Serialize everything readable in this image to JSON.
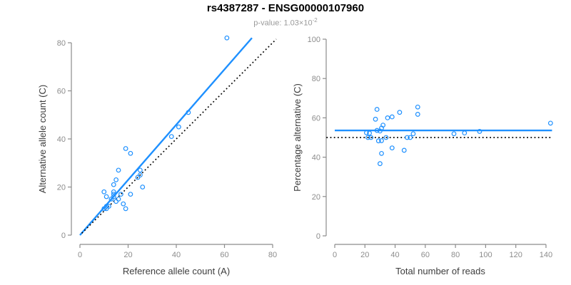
{
  "header": {
    "title": "rs4387287 - ENSG00000107960",
    "pvalue_label": "p-value:",
    "pvalue_base": "1.03×10",
    "pvalue_exponent": "-2"
  },
  "colors": {
    "accent_blue": "#1e90ff",
    "line_black": "#000000",
    "axis_gray": "#8c8c8c",
    "tick_label_gray": "#8c8c8c",
    "axis_title_dark": "#3d3d3d",
    "subtitle_gray": "#9a9a9a",
    "title_black": "#000000"
  },
  "chart_data": [
    {
      "id": "allele-counts",
      "type": "scatter",
      "title": "",
      "xlabel": "Reference allele count (A)",
      "ylabel": "Alternative allele count (C)",
      "xlim": [
        0,
        83
      ],
      "ylim": [
        0,
        83
      ],
      "xticks": [
        0,
        20,
        40,
        60,
        80
      ],
      "yticks": [
        0,
        20,
        40,
        60,
        80
      ],
      "grid": false,
      "marker": "open-circle",
      "marker_color_key": "accent_blue",
      "points": [
        [
          61,
          82
        ],
        [
          45,
          51
        ],
        [
          41,
          45
        ],
        [
          38,
          41
        ],
        [
          19,
          36
        ],
        [
          21,
          34
        ],
        [
          16,
          27
        ],
        [
          25,
          27
        ],
        [
          25,
          25
        ],
        [
          24,
          24
        ],
        [
          26,
          20
        ],
        [
          21,
          17
        ],
        [
          10,
          18
        ],
        [
          11,
          16
        ],
        [
          15,
          23
        ],
        [
          14,
          21
        ],
        [
          14,
          18
        ],
        [
          14,
          17
        ],
        [
          13,
          15
        ],
        [
          14,
          16
        ],
        [
          15,
          14
        ],
        [
          16,
          15
        ],
        [
          17,
          17
        ],
        [
          10,
          11
        ],
        [
          11,
          11
        ],
        [
          11,
          12
        ],
        [
          12,
          12
        ],
        [
          18,
          13
        ],
        [
          19,
          11
        ]
      ],
      "lines": [
        {
          "name": "fit-line",
          "style": "solid",
          "color_key": "accent_blue",
          "width": 2.4,
          "x1": 0,
          "y1": 0,
          "x2": 71.4,
          "y2": 82
        },
        {
          "name": "identity-line",
          "style": "dotted",
          "color_key": "line_black",
          "width": 1.7,
          "x1": 0.8,
          "y1": 0.8,
          "x2": 81.5,
          "y2": 81.5
        }
      ]
    },
    {
      "id": "percentage-vs-reads",
      "type": "scatter",
      "title": "",
      "xlabel": "Total number of reads",
      "ylabel": "Percentage alternative (C)",
      "xlim": [
        0,
        145
      ],
      "ylim": [
        0,
        100
      ],
      "xticks": [
        0,
        20,
        40,
        60,
        80,
        100,
        120,
        140
      ],
      "yticks": [
        0,
        20,
        40,
        60,
        80,
        100
      ],
      "grid": false,
      "marker": "open-circle",
      "marker_color_key": "accent_blue",
      "points": [
        [
          143,
          57.3
        ],
        [
          96,
          53.1
        ],
        [
          86,
          52.3
        ],
        [
          79,
          51.9
        ],
        [
          55,
          65.5
        ],
        [
          55,
          61.8
        ],
        [
          43,
          62.8
        ],
        [
          52,
          51.9
        ],
        [
          50,
          50.0
        ],
        [
          48,
          50.0
        ],
        [
          46,
          43.5
        ],
        [
          38,
          44.7
        ],
        [
          28,
          64.3
        ],
        [
          27,
          59.3
        ],
        [
          38,
          60.5
        ],
        [
          35,
          60.0
        ],
        [
          32,
          56.3
        ],
        [
          31,
          54.8
        ],
        [
          28,
          53.6
        ],
        [
          30,
          53.3
        ],
        [
          29,
          48.3
        ],
        [
          31,
          48.4
        ],
        [
          34,
          50.0
        ],
        [
          21,
          52.4
        ],
        [
          22,
          50.0
        ],
        [
          23,
          52.2
        ],
        [
          24,
          50.0
        ],
        [
          31,
          41.9
        ],
        [
          30,
          36.7
        ]
      ],
      "lines": [
        {
          "name": "fit-line",
          "style": "solid",
          "color_key": "accent_blue",
          "width": 2.4,
          "x1": 0,
          "y1": 53.6,
          "x2": 144,
          "y2": 53.6
        },
        {
          "name": "null-line",
          "style": "dotted",
          "color_key": "line_black",
          "width": 1.7,
          "x1": -5.5,
          "y1": 50,
          "x2": 144,
          "y2": 50
        }
      ]
    }
  ]
}
